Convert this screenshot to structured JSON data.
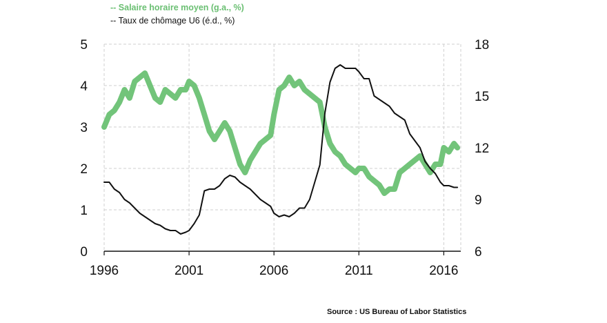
{
  "legend": {
    "series1": "-- Salaire horaire moyen (g.a., %)",
    "series2": "-- Taux de chômage U6 (é.d., %)"
  },
  "source": "Source : US Bureau of Labor Statistics",
  "chart_data": {
    "type": "line",
    "x_ticks": [
      "1996",
      "2001",
      "2006",
      "2011",
      "2016"
    ],
    "xlim": [
      1996,
      2017
    ],
    "y_left_ticks": [
      "0",
      "1",
      "2",
      "3",
      "4",
      "5"
    ],
    "ylim_left": [
      0,
      5
    ],
    "y_right_ticks": [
      "6",
      "9",
      "12",
      "15",
      "18"
    ],
    "ylim_right": [
      6,
      18
    ],
    "grid": true,
    "colors": {
      "wage": "#72c47a",
      "u6": "#111111"
    },
    "series": [
      {
        "name": "Salaire horaire moyen (g.a., %)",
        "axis": "left",
        "points": [
          [
            1996.0,
            3.0
          ],
          [
            1996.3,
            3.3
          ],
          [
            1996.6,
            3.4
          ],
          [
            1996.9,
            3.6
          ],
          [
            1997.2,
            3.9
          ],
          [
            1997.5,
            3.7
          ],
          [
            1997.8,
            4.1
          ],
          [
            1998.1,
            4.2
          ],
          [
            1998.4,
            4.3
          ],
          [
            1998.7,
            4.0
          ],
          [
            1999.0,
            3.7
          ],
          [
            1999.3,
            3.6
          ],
          [
            1999.6,
            3.9
          ],
          [
            1999.9,
            3.8
          ],
          [
            2000.2,
            3.7
          ],
          [
            2000.5,
            3.9
          ],
          [
            2000.8,
            3.9
          ],
          [
            2001.0,
            4.1
          ],
          [
            2001.3,
            4.0
          ],
          [
            2001.6,
            3.7
          ],
          [
            2001.9,
            3.3
          ],
          [
            2002.2,
            2.9
          ],
          [
            2002.5,
            2.7
          ],
          [
            2002.8,
            2.9
          ],
          [
            2003.1,
            3.1
          ],
          [
            2003.4,
            2.9
          ],
          [
            2003.7,
            2.5
          ],
          [
            2004.0,
            2.1
          ],
          [
            2004.3,
            1.9
          ],
          [
            2004.6,
            2.2
          ],
          [
            2004.9,
            2.4
          ],
          [
            2005.2,
            2.6
          ],
          [
            2005.5,
            2.7
          ],
          [
            2005.8,
            2.8
          ],
          [
            2006.0,
            3.3
          ],
          [
            2006.3,
            3.9
          ],
          [
            2006.6,
            4.0
          ],
          [
            2006.9,
            4.2
          ],
          [
            2007.2,
            4.0
          ],
          [
            2007.5,
            4.1
          ],
          [
            2007.8,
            3.9
          ],
          [
            2008.1,
            3.8
          ],
          [
            2008.4,
            3.7
          ],
          [
            2008.7,
            3.6
          ],
          [
            2009.0,
            3.0
          ],
          [
            2009.3,
            2.6
          ],
          [
            2009.6,
            2.4
          ],
          [
            2009.9,
            2.3
          ],
          [
            2010.2,
            2.1
          ],
          [
            2010.5,
            2.0
          ],
          [
            2010.8,
            1.9
          ],
          [
            2011.0,
            2.0
          ],
          [
            2011.3,
            2.0
          ],
          [
            2011.6,
            1.8
          ],
          [
            2011.9,
            1.7
          ],
          [
            2012.2,
            1.6
          ],
          [
            2012.5,
            1.4
          ],
          [
            2012.8,
            1.5
          ],
          [
            2013.1,
            1.5
          ],
          [
            2013.4,
            1.9
          ],
          [
            2013.7,
            2.0
          ],
          [
            2014.0,
            2.1
          ],
          [
            2014.3,
            2.2
          ],
          [
            2014.6,
            2.3
          ],
          [
            2014.9,
            2.1
          ],
          [
            2015.2,
            1.9
          ],
          [
            2015.5,
            2.1
          ],
          [
            2015.8,
            2.1
          ],
          [
            2016.0,
            2.5
          ],
          [
            2016.3,
            2.4
          ],
          [
            2016.6,
            2.6
          ],
          [
            2016.8,
            2.5
          ]
        ]
      },
      {
        "name": "Taux de chômage U6 (é.d., %)",
        "axis": "right",
        "points": [
          [
            1996.0,
            10.0
          ],
          [
            1996.3,
            10.0
          ],
          [
            1996.6,
            9.6
          ],
          [
            1996.9,
            9.4
          ],
          [
            1997.2,
            9.0
          ],
          [
            1997.5,
            8.8
          ],
          [
            1997.8,
            8.5
          ],
          [
            1998.1,
            8.2
          ],
          [
            1998.4,
            8.0
          ],
          [
            1998.7,
            7.8
          ],
          [
            1999.0,
            7.6
          ],
          [
            1999.3,
            7.5
          ],
          [
            1999.6,
            7.3
          ],
          [
            1999.9,
            7.2
          ],
          [
            2000.2,
            7.2
          ],
          [
            2000.5,
            7.0
          ],
          [
            2000.8,
            7.1
          ],
          [
            2001.0,
            7.2
          ],
          [
            2001.3,
            7.6
          ],
          [
            2001.6,
            8.1
          ],
          [
            2001.9,
            9.5
          ],
          [
            2002.2,
            9.6
          ],
          [
            2002.5,
            9.6
          ],
          [
            2002.8,
            9.8
          ],
          [
            2003.1,
            10.2
          ],
          [
            2003.4,
            10.4
          ],
          [
            2003.7,
            10.3
          ],
          [
            2004.0,
            10.0
          ],
          [
            2004.3,
            9.8
          ],
          [
            2004.6,
            9.6
          ],
          [
            2004.9,
            9.3
          ],
          [
            2005.2,
            9.0
          ],
          [
            2005.5,
            8.8
          ],
          [
            2005.8,
            8.6
          ],
          [
            2006.0,
            8.2
          ],
          [
            2006.3,
            8.0
          ],
          [
            2006.6,
            8.1
          ],
          [
            2006.9,
            8.0
          ],
          [
            2007.2,
            8.2
          ],
          [
            2007.5,
            8.5
          ],
          [
            2007.8,
            8.5
          ],
          [
            2008.1,
            9.0
          ],
          [
            2008.4,
            10.0
          ],
          [
            2008.7,
            11.0
          ],
          [
            2009.0,
            14.0
          ],
          [
            2009.3,
            15.8
          ],
          [
            2009.6,
            16.6
          ],
          [
            2009.9,
            16.8
          ],
          [
            2010.2,
            16.6
          ],
          [
            2010.5,
            16.6
          ],
          [
            2010.8,
            16.6
          ],
          [
            2011.0,
            16.4
          ],
          [
            2011.3,
            16.0
          ],
          [
            2011.6,
            16.0
          ],
          [
            2011.9,
            15.0
          ],
          [
            2012.2,
            14.8
          ],
          [
            2012.5,
            14.6
          ],
          [
            2012.8,
            14.4
          ],
          [
            2013.1,
            14.0
          ],
          [
            2013.4,
            13.8
          ],
          [
            2013.7,
            13.6
          ],
          [
            2014.0,
            12.8
          ],
          [
            2014.3,
            12.4
          ],
          [
            2014.6,
            12.0
          ],
          [
            2014.9,
            11.2
          ],
          [
            2015.2,
            10.8
          ],
          [
            2015.5,
            10.5
          ],
          [
            2015.8,
            10.0
          ],
          [
            2016.0,
            9.8
          ],
          [
            2016.3,
            9.8
          ],
          [
            2016.6,
            9.7
          ],
          [
            2016.8,
            9.7
          ]
        ]
      }
    ]
  }
}
